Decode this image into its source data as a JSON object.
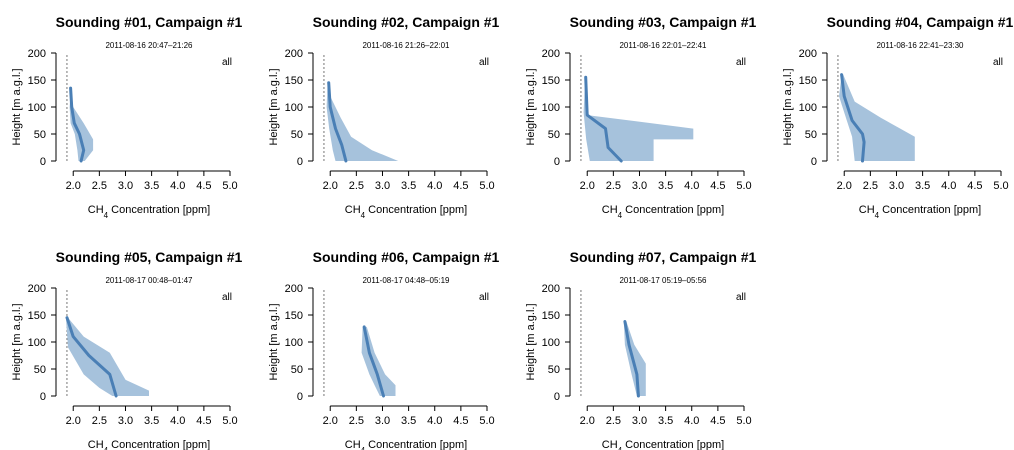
{
  "chart_data": {
    "type": "line",
    "x_axis": {
      "label_prefix": "CH",
      "label_sub": "4",
      "label_suffix": " Concentration [ppm]",
      "ticks": [
        "2.0",
        "2.5",
        "3.0",
        "3.5",
        "4.0",
        "4.5",
        "5.0"
      ],
      "xlim": [
        1.9,
        5.0
      ]
    },
    "y_axis": {
      "label": "Height [m a.g.l.]",
      "ticks": [
        "0",
        "50",
        "100",
        "150",
        "200"
      ],
      "ylim": [
        0,
        200
      ]
    },
    "reference_x": 1.88,
    "legend_text": "all",
    "colors": {
      "band": "#a6c2dc",
      "median": "#4a7fb5"
    },
    "panels": [
      {
        "title": "Sounding #01, Campaign #1",
        "datetime": "2011-08-16 20:47–21:26",
        "median": [
          [
            2.15,
            0
          ],
          [
            2.2,
            20
          ],
          [
            2.12,
            50
          ],
          [
            2.02,
            70
          ],
          [
            1.97,
            100
          ],
          [
            1.95,
            135
          ]
        ],
        "band_upper": [
          [
            2.22,
            0
          ],
          [
            2.38,
            20
          ],
          [
            2.38,
            40
          ],
          [
            2.2,
            70
          ],
          [
            2.0,
            100
          ],
          [
            1.96,
            135
          ]
        ],
        "band_lower": [
          [
            1.96,
            135
          ],
          [
            1.93,
            100
          ],
          [
            1.95,
            70
          ],
          [
            2.03,
            50
          ],
          [
            2.08,
            20
          ],
          [
            2.1,
            0
          ]
        ]
      },
      {
        "title": "Sounding #02, Campaign #1",
        "datetime": "2011-08-16 21:26–22:01",
        "median": [
          [
            2.3,
            0
          ],
          [
            2.22,
            30
          ],
          [
            2.1,
            60
          ],
          [
            2.0,
            100
          ],
          [
            1.97,
            145
          ]
        ],
        "band_upper": [
          [
            3.3,
            0
          ],
          [
            2.8,
            20
          ],
          [
            2.4,
            45
          ],
          [
            2.2,
            80
          ],
          [
            2.0,
            120
          ],
          [
            1.98,
            145
          ]
        ],
        "band_lower": [
          [
            1.95,
            145
          ],
          [
            1.93,
            100
          ],
          [
            1.98,
            60
          ],
          [
            2.05,
            20
          ],
          [
            2.1,
            0
          ]
        ]
      },
      {
        "title": "Sounding #03, Campaign #1",
        "datetime": "2011-08-16 22:01–22:41",
        "median": [
          [
            2.65,
            0
          ],
          [
            2.4,
            25
          ],
          [
            2.35,
            60
          ],
          [
            2.0,
            85
          ],
          [
            1.97,
            155
          ]
        ],
        "band_upper": [
          [
            3.27,
            0
          ],
          [
            3.27,
            40
          ],
          [
            4.03,
            40
          ],
          [
            4.03,
            60
          ],
          [
            2.0,
            85
          ],
          [
            1.99,
            155
          ]
        ],
        "band_lower": [
          [
            1.96,
            155
          ],
          [
            1.93,
            90
          ],
          [
            1.98,
            40
          ],
          [
            2.05,
            0
          ]
        ]
      },
      {
        "title": "Sounding #04, Campaign #1",
        "datetime": "2011-08-16 22:41–23:30",
        "median": [
          [
            2.35,
            0
          ],
          [
            2.38,
            35
          ],
          [
            2.35,
            50
          ],
          [
            2.15,
            75
          ],
          [
            2.0,
            120
          ],
          [
            1.95,
            160
          ]
        ],
        "band_upper": [
          [
            3.35,
            0
          ],
          [
            3.35,
            45
          ],
          [
            2.7,
            80
          ],
          [
            2.2,
            110
          ],
          [
            1.98,
            160
          ]
        ],
        "band_lower": [
          [
            1.95,
            160
          ],
          [
            1.9,
            120
          ],
          [
            2.05,
            75
          ],
          [
            2.15,
            45
          ],
          [
            2.2,
            0
          ]
        ]
      },
      {
        "title": "Sounding #05, Campaign #1",
        "datetime": "2011-08-17 00:48–01:47",
        "median": [
          [
            2.82,
            0
          ],
          [
            2.7,
            40
          ],
          [
            2.3,
            75
          ],
          [
            2.0,
            110
          ],
          [
            1.88,
            145
          ]
        ],
        "band_upper": [
          [
            3.45,
            0
          ],
          [
            3.45,
            10
          ],
          [
            3.0,
            30
          ],
          [
            2.7,
            80
          ],
          [
            2.2,
            110
          ],
          [
            1.9,
            145
          ]
        ],
        "band_lower": [
          [
            1.86,
            145
          ],
          [
            1.9,
            90
          ],
          [
            2.2,
            40
          ],
          [
            2.5,
            15
          ],
          [
            2.75,
            0
          ]
        ]
      },
      {
        "title": "Sounding #06, Campaign #1",
        "datetime": "2011-08-17 04:48–05:19",
        "median": [
          [
            3.02,
            0
          ],
          [
            2.9,
            40
          ],
          [
            2.75,
            80
          ],
          [
            2.65,
            128
          ]
        ],
        "band_upper": [
          [
            3.25,
            0
          ],
          [
            3.25,
            20
          ],
          [
            3.05,
            40
          ],
          [
            2.85,
            80
          ],
          [
            2.7,
            128
          ]
        ],
        "band_lower": [
          [
            2.62,
            128
          ],
          [
            2.6,
            80
          ],
          [
            2.75,
            40
          ],
          [
            2.85,
            20
          ],
          [
            2.95,
            0
          ]
        ]
      },
      {
        "title": "Sounding #07, Campaign #1",
        "datetime": "2011-08-17 05:19–05:56",
        "median": [
          [
            2.98,
            0
          ],
          [
            2.95,
            40
          ],
          [
            2.8,
            95
          ],
          [
            2.72,
            138
          ]
        ],
        "band_upper": [
          [
            3.12,
            0
          ],
          [
            3.12,
            60
          ],
          [
            2.9,
            95
          ],
          [
            2.75,
            138
          ]
        ],
        "band_lower": [
          [
            2.7,
            138
          ],
          [
            2.72,
            95
          ],
          [
            2.85,
            40
          ],
          [
            2.95,
            0
          ]
        ]
      }
    ]
  }
}
